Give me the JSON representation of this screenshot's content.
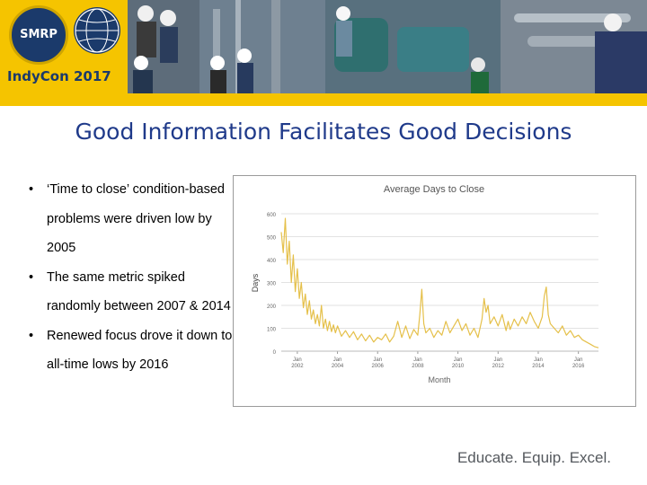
{
  "header": {
    "logo_seal_text": "SMRP",
    "logo_event_text": "IndyCon 2017"
  },
  "slide": {
    "title": "Good Information Facilitates Good Decisions",
    "bullets": [
      "‘Time to close’ condition-based problems were driven low by 2005",
      "The same metric spiked randomly between 2007 & 2014",
      "Renewed focus drove it down to all-time lows by 2016"
    ],
    "bullet_char": "•"
  },
  "footer": {
    "tagline": "Educate. Equip. Excel."
  },
  "colors": {
    "title_blue": "#1f3a8a",
    "banner_yellow": "#f5c400",
    "logo_navy": "#1b3a6b",
    "chart_line": "#e5c04a"
  },
  "chart_data": {
    "type": "line",
    "title": "Average Days to Close",
    "xlabel": "Month",
    "ylabel": "Days",
    "ylim": [
      0,
      500
    ],
    "y_ticks": [
      "0",
      "100",
      "200",
      "300",
      "400",
      "500",
      "600"
    ],
    "x_ticks": [
      {
        "label": "Jan 2002",
        "x": 2002.0
      },
      {
        "label": "Jan 2004",
        "x": 2004.0
      },
      {
        "label": "Jan 2006",
        "x": 2006.0
      },
      {
        "label": "Jan 2008",
        "x": 2008.0
      },
      {
        "label": "Jan 2010",
        "x": 2010.0
      },
      {
        "label": "Jan 2012",
        "x": 2012.0
      },
      {
        "label": "Jan 2014",
        "x": 2014.0
      },
      {
        "label": "Jan 2016",
        "x": 2016.0
      }
    ],
    "grid": true,
    "legend": "none",
    "series": [
      {
        "points": [
          [
            2001.2,
            520
          ],
          [
            2001.3,
            430
          ],
          [
            2001.4,
            580
          ],
          [
            2001.5,
            380
          ],
          [
            2001.6,
            480
          ],
          [
            2001.7,
            300
          ],
          [
            2001.8,
            420
          ],
          [
            2001.9,
            260
          ],
          [
            2002.0,
            360
          ],
          [
            2002.1,
            230
          ],
          [
            2002.2,
            300
          ],
          [
            2002.3,
            190
          ],
          [
            2002.4,
            250
          ],
          [
            2002.5,
            160
          ],
          [
            2002.6,
            220
          ],
          [
            2002.7,
            140
          ],
          [
            2002.8,
            180
          ],
          [
            2002.9,
            120
          ],
          [
            2003.0,
            160
          ],
          [
            2003.1,
            110
          ],
          [
            2003.2,
            200
          ],
          [
            2003.3,
            100
          ],
          [
            2003.4,
            140
          ],
          [
            2003.5,
            90
          ],
          [
            2003.6,
            130
          ],
          [
            2003.7,
            85
          ],
          [
            2003.8,
            115
          ],
          [
            2003.9,
            80
          ],
          [
            2004.0,
            110
          ],
          [
            2004.2,
            65
          ],
          [
            2004.4,
            90
          ],
          [
            2004.6,
            60
          ],
          [
            2004.8,
            85
          ],
          [
            2005.0,
            50
          ],
          [
            2005.2,
            75
          ],
          [
            2005.4,
            45
          ],
          [
            2005.6,
            70
          ],
          [
            2005.8,
            40
          ],
          [
            2006.0,
            60
          ],
          [
            2006.2,
            50
          ],
          [
            2006.4,
            75
          ],
          [
            2006.6,
            40
          ],
          [
            2006.8,
            65
          ],
          [
            2007.0,
            130
          ],
          [
            2007.2,
            60
          ],
          [
            2007.4,
            110
          ],
          [
            2007.6,
            55
          ],
          [
            2007.8,
            95
          ],
          [
            2008.0,
            70
          ],
          [
            2008.1,
            160
          ],
          [
            2008.2,
            270
          ],
          [
            2008.3,
            120
          ],
          [
            2008.4,
            80
          ],
          [
            2008.6,
            100
          ],
          [
            2008.8,
            60
          ],
          [
            2009.0,
            90
          ],
          [
            2009.2,
            70
          ],
          [
            2009.4,
            130
          ],
          [
            2009.6,
            80
          ],
          [
            2009.8,
            110
          ],
          [
            2010.0,
            140
          ],
          [
            2010.2,
            90
          ],
          [
            2010.4,
            120
          ],
          [
            2010.6,
            70
          ],
          [
            2010.8,
            100
          ],
          [
            2011.0,
            60
          ],
          [
            2011.2,
            140
          ],
          [
            2011.3,
            230
          ],
          [
            2011.4,
            170
          ],
          [
            2011.5,
            200
          ],
          [
            2011.6,
            120
          ],
          [
            2011.8,
            150
          ],
          [
            2012.0,
            110
          ],
          [
            2012.2,
            160
          ],
          [
            2012.4,
            90
          ],
          [
            2012.5,
            130
          ],
          [
            2012.6,
            95
          ],
          [
            2012.8,
            140
          ],
          [
            2013.0,
            110
          ],
          [
            2013.2,
            150
          ],
          [
            2013.4,
            120
          ],
          [
            2013.6,
            170
          ],
          [
            2013.8,
            130
          ],
          [
            2014.0,
            100
          ],
          [
            2014.2,
            150
          ],
          [
            2014.3,
            240
          ],
          [
            2014.4,
            280
          ],
          [
            2014.5,
            160
          ],
          [
            2014.6,
            120
          ],
          [
            2014.8,
            100
          ],
          [
            2015.0,
            80
          ],
          [
            2015.2,
            110
          ],
          [
            2015.4,
            70
          ],
          [
            2015.6,
            90
          ],
          [
            2015.8,
            60
          ],
          [
            2016.0,
            70
          ],
          [
            2016.2,
            50
          ],
          [
            2016.4,
            40
          ],
          [
            2016.6,
            30
          ],
          [
            2016.8,
            20
          ],
          [
            2017.0,
            15
          ]
        ]
      }
    ]
  }
}
